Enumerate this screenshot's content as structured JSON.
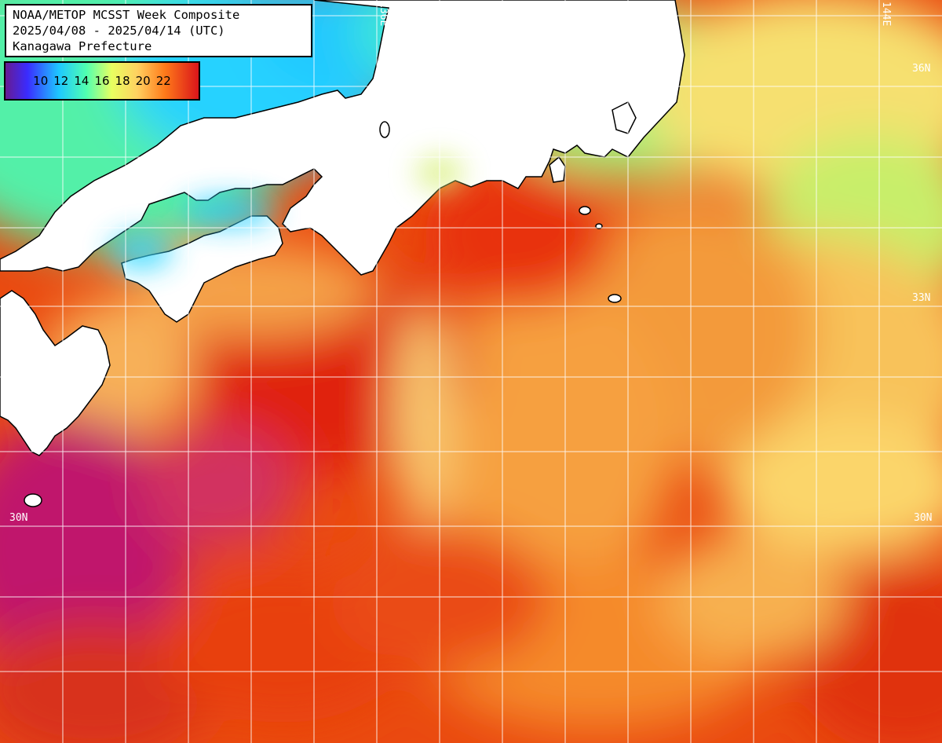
{
  "title": {
    "line1": "NOAA/METOP MCSST Week Composite",
    "line2": "2025/04/08 - 2025/04/14 (UTC)",
    "line3": "Kanagawa Prefecture"
  },
  "legend": {
    "labels": [
      "10",
      "12",
      "14",
      "16",
      "18",
      "20",
      "22"
    ],
    "colors": [
      "#7a1e9a",
      "#3340ff",
      "#22d6ff",
      "#6cff8a",
      "#fff07a",
      "#ff9a20",
      "#e81a10"
    ]
  },
  "grid_labels": {
    "lon_136": "136E",
    "lon_144": "144E",
    "lat_36": "36N",
    "lat_33": "33N",
    "lat_30_left": "30N",
    "lat_30_right": "30N"
  },
  "colors": {
    "land": "#ffffff",
    "coast": "#000000",
    "grid": "#ffffff",
    "sea_warm": "#e8400c",
    "sea_hot": "#d81e14",
    "sea_mid": "#f27c26",
    "sea_cool": "#fde07a",
    "sea_cold": "#7cf0a0",
    "sea_coldest": "#33d6ff",
    "sea_purple": "#b0106a"
  }
}
